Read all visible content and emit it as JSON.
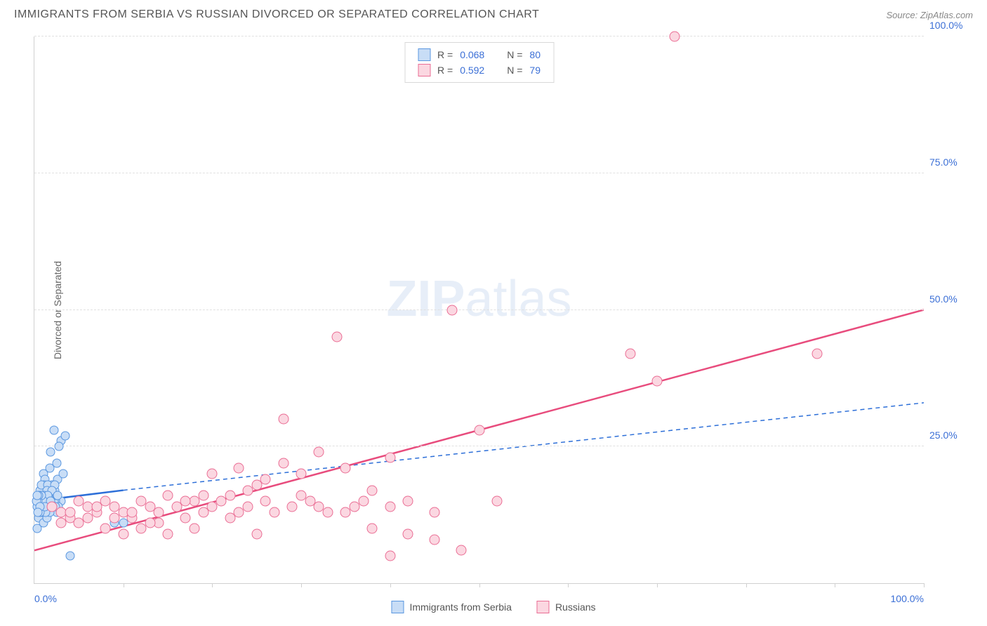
{
  "title": "IMMIGRANTS FROM SERBIA VS RUSSIAN DIVORCED OR SEPARATED CORRELATION CHART",
  "source": "Source: ZipAtlas.com",
  "watermark": {
    "bold": "ZIP",
    "light": "atlas"
  },
  "chart": {
    "type": "scatter",
    "background_color": "#ffffff",
    "grid_color": "#e0e0e0",
    "axis_color": "#d0d0d0",
    "label_color": "#3b6fd6",
    "y_axis_label": "Divorced or Separated",
    "xlim": [
      0,
      100
    ],
    "ylim": [
      0,
      100
    ],
    "y_ticks": [
      {
        "value": 25,
        "label": "25.0%"
      },
      {
        "value": 50,
        "label": "50.0%"
      },
      {
        "value": 75,
        "label": "75.0%"
      },
      {
        "value": 100,
        "label": "100.0%"
      }
    ],
    "x_ticks_minor": [
      10,
      20,
      30,
      40,
      50,
      60,
      70,
      80,
      90,
      100
    ],
    "x_labels": [
      {
        "value": 0,
        "label": "0.0%"
      },
      {
        "value": 100,
        "label": "100.0%"
      }
    ],
    "series": [
      {
        "name": "Immigrants from Serbia",
        "fill": "#c8ddf6",
        "stroke": "#5a97e0",
        "marker_size": 13,
        "r_value": "0.068",
        "n_value": "80",
        "trend": {
          "x1": 0,
          "y1": 15,
          "x2": 10,
          "y2": 17,
          "color": "#2d6fd8",
          "dash": false,
          "width": 2.5
        },
        "trend_ext": {
          "x1": 10,
          "y1": 17,
          "x2": 100,
          "y2": 33,
          "color": "#2d6fd8",
          "dash": true,
          "width": 1.5
        },
        "points": [
          [
            1,
            14
          ],
          [
            0.5,
            15
          ],
          [
            1.2,
            16
          ],
          [
            0.8,
            13
          ],
          [
            1.5,
            17
          ],
          [
            2,
            18
          ],
          [
            1,
            20
          ],
          [
            2.5,
            22
          ],
          [
            1.8,
            24
          ],
          [
            3,
            26
          ],
          [
            2.2,
            28
          ],
          [
            0.5,
            12
          ],
          [
            1,
            11
          ],
          [
            0.3,
            10
          ],
          [
            2,
            14
          ],
          [
            1.5,
            13
          ],
          [
            3.5,
            27
          ],
          [
            2.8,
            25
          ],
          [
            1.2,
            19
          ],
          [
            0.7,
            16
          ],
          [
            1.9,
            15
          ],
          [
            2.3,
            17
          ],
          [
            0.9,
            14
          ],
          [
            1.4,
            12
          ],
          [
            3,
            15
          ],
          [
            2.5,
            13
          ],
          [
            1.1,
            18
          ],
          [
            0.6,
            17
          ],
          [
            1.7,
            21
          ],
          [
            2.1,
            16
          ],
          [
            0.4,
            14
          ],
          [
            1.3,
            15
          ],
          [
            2.6,
            19
          ],
          [
            3.2,
            20
          ],
          [
            0.8,
            18
          ],
          [
            1.6,
            14
          ],
          [
            2.4,
            15
          ],
          [
            0.5,
            13
          ],
          [
            1.9,
            17
          ],
          [
            2.7,
            14
          ],
          [
            1,
            16
          ],
          [
            0.7,
            15
          ],
          [
            1.5,
            18
          ],
          [
            2,
            16
          ],
          [
            0.9,
            13
          ],
          [
            1.8,
            14
          ],
          [
            2.2,
            15
          ],
          [
            0.6,
            16
          ],
          [
            1.4,
            17
          ],
          [
            2.5,
            16
          ],
          [
            1.2,
            14
          ],
          [
            0.8,
            15
          ],
          [
            1.7,
            13
          ],
          [
            2.3,
            18
          ],
          [
            0.5,
            14
          ],
          [
            1.1,
            16
          ],
          [
            2,
            17
          ],
          [
            1.6,
            15
          ],
          [
            0.9,
            14
          ],
          [
            1.3,
            13
          ],
          [
            2.1,
            14
          ],
          [
            0.7,
            15
          ],
          [
            1.5,
            16
          ],
          [
            2.4,
            14
          ],
          [
            1,
            15
          ],
          [
            0.6,
            13
          ],
          [
            1.8,
            15
          ],
          [
            2.6,
            16
          ],
          [
            1.2,
            14
          ],
          [
            0.8,
            16
          ],
          [
            4,
            5
          ],
          [
            9,
            11
          ],
          [
            10,
            11
          ],
          [
            0.4,
            15
          ],
          [
            0.3,
            14
          ],
          [
            0.5,
            16
          ],
          [
            0.2,
            15
          ],
          [
            0.6,
            14
          ],
          [
            0.4,
            13
          ],
          [
            0.3,
            16
          ]
        ]
      },
      {
        "name": "Russians",
        "fill": "#fbd7e1",
        "stroke": "#ea6d94",
        "marker_size": 15,
        "r_value": "0.592",
        "n_value": "79",
        "trend": {
          "x1": 0,
          "y1": 6,
          "x2": 100,
          "y2": 50,
          "color": "#e84c7d",
          "dash": false,
          "width": 2.5
        },
        "points": [
          [
            2,
            14
          ],
          [
            3,
            13
          ],
          [
            5,
            15
          ],
          [
            4,
            12
          ],
          [
            6,
            14
          ],
          [
            7,
            13
          ],
          [
            8,
            15
          ],
          [
            5,
            11
          ],
          [
            9,
            14
          ],
          [
            10,
            13
          ],
          [
            12,
            15
          ],
          [
            11,
            12
          ],
          [
            13,
            14
          ],
          [
            14,
            13
          ],
          [
            15,
            16
          ],
          [
            16,
            14
          ],
          [
            18,
            15
          ],
          [
            17,
            12
          ],
          [
            19,
            13
          ],
          [
            20,
            14
          ],
          [
            22,
            16
          ],
          [
            21,
            15
          ],
          [
            23,
            13
          ],
          [
            25,
            18
          ],
          [
            24,
            14
          ],
          [
            26,
            15
          ],
          [
            28,
            22
          ],
          [
            27,
            13
          ],
          [
            30,
            20
          ],
          [
            29,
            14
          ],
          [
            32,
            24
          ],
          [
            31,
            15
          ],
          [
            33,
            13
          ],
          [
            35,
            21
          ],
          [
            37,
            15
          ],
          [
            36,
            14
          ],
          [
            28,
            30
          ],
          [
            40,
            14
          ],
          [
            38,
            10
          ],
          [
            42,
            15
          ],
          [
            25,
            9
          ],
          [
            15,
            9
          ],
          [
            12,
            10
          ],
          [
            45,
            8
          ],
          [
            47,
            50
          ],
          [
            34,
            45
          ],
          [
            50,
            28
          ],
          [
            48,
            6
          ],
          [
            52,
            15
          ],
          [
            40,
            5
          ],
          [
            8,
            10
          ],
          [
            10,
            9
          ],
          [
            14,
            11
          ],
          [
            18,
            10
          ],
          [
            22,
            12
          ],
          [
            17,
            15
          ],
          [
            19,
            16
          ],
          [
            6,
            12
          ],
          [
            4,
            13
          ],
          [
            3,
            11
          ],
          [
            7,
            14
          ],
          [
            9,
            12
          ],
          [
            11,
            13
          ],
          [
            13,
            11
          ],
          [
            67,
            42
          ],
          [
            70,
            37
          ],
          [
            72,
            100
          ],
          [
            88,
            42
          ],
          [
            23,
            21
          ],
          [
            20,
            20
          ],
          [
            26,
            19
          ],
          [
            24,
            17
          ],
          [
            30,
            16
          ],
          [
            32,
            14
          ],
          [
            35,
            13
          ],
          [
            38,
            17
          ],
          [
            40,
            23
          ],
          [
            42,
            9
          ],
          [
            45,
            13
          ]
        ]
      }
    ]
  },
  "legend_bottom": [
    {
      "label": "Immigrants from Serbia",
      "fill": "#c8ddf6",
      "stroke": "#5a97e0"
    },
    {
      "label": "Russians",
      "fill": "#fbd7e1",
      "stroke": "#ea6d94"
    }
  ]
}
